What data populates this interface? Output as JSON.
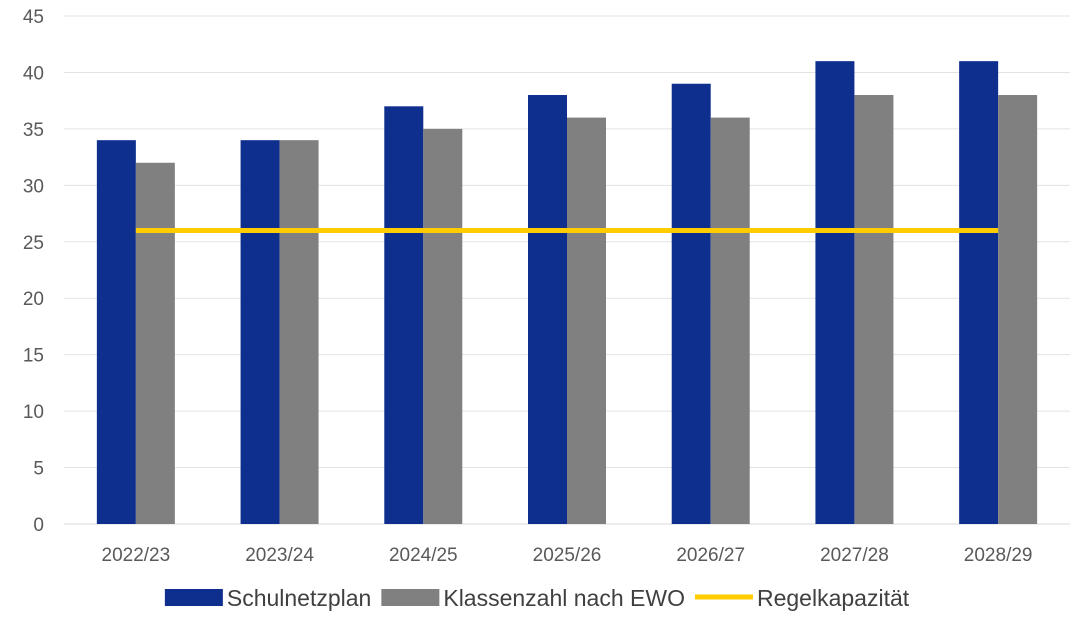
{
  "chart_data": {
    "type": "bar",
    "categories": [
      "2022/23",
      "2023/24",
      "2024/25",
      "2025/26",
      "2026/27",
      "2027/28",
      "2028/29"
    ],
    "series": [
      {
        "name": "Schulnetzplan",
        "kind": "bar",
        "color": "#0E2F8E",
        "values": [
          34,
          34,
          37,
          38,
          39,
          41,
          41
        ]
      },
      {
        "name": "Klassenzahl nach EWO",
        "kind": "bar",
        "color": "#808080",
        "values": [
          32,
          34,
          35,
          36,
          36,
          38,
          38
        ]
      },
      {
        "name": "Regelkapazität",
        "kind": "line",
        "color": "#FFCC00",
        "values": [
          26,
          26,
          26,
          26,
          26,
          26,
          26
        ]
      }
    ],
    "ylim": [
      0,
      45
    ],
    "yticks": [
      0,
      5,
      10,
      15,
      20,
      25,
      30,
      35,
      40,
      45
    ],
    "grid": true,
    "legend_position": "bottom"
  }
}
